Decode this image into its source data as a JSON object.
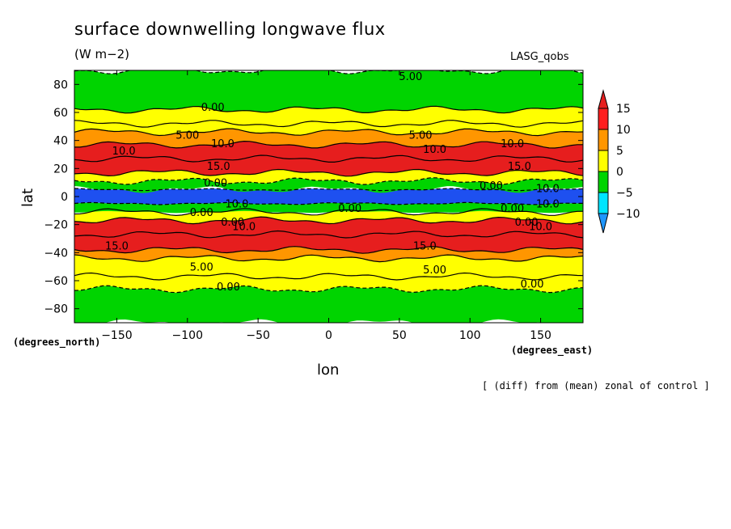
{
  "header": {
    "title": "surface downwelling longwave flux",
    "units": "(W m−2)",
    "model": "LASG_qobs",
    "note": "[ (diff) from (mean) zonal of control ]"
  },
  "axes": {
    "xlabel": "lon",
    "ylabel": "lat",
    "xunits": "(degrees_east)",
    "yunits": "(degrees_north)"
  },
  "chart_data": {
    "type": "heatmap",
    "title": "surface downwelling longwave flux",
    "units": "(W m−2)",
    "xlabel": "lon",
    "ylabel": "lat",
    "xlim": [
      -180,
      180
    ],
    "ylim": [
      -90,
      90
    ],
    "x_ticks": [
      -150,
      -100,
      -50,
      0,
      50,
      100,
      150
    ],
    "x_tick_labels": [
      "−150",
      "−100",
      "−50",
      "0",
      "50",
      "100",
      "150"
    ],
    "y_ticks": [
      -80,
      -60,
      -40,
      -20,
      0,
      20,
      40,
      60,
      80
    ],
    "y_tick_labels": [
      "−80",
      "−60",
      "−40",
      "−20",
      "0",
      "20",
      "40",
      "60",
      "80"
    ],
    "colorbar": {
      "levels": [
        -10,
        -5,
        0,
        5,
        10,
        15
      ],
      "level_labels": [
        "−10",
        "−5",
        "0",
        "5",
        "10",
        "15"
      ],
      "colors": [
        "#1e96ff",
        "#00e5ff",
        "#00d400",
        "#ffff00",
        "#ff9600",
        "#ff1e1e"
      ],
      "under_color": "#1e50f0",
      "over_color": "#e61e1e"
    },
    "zonal_bands": [
      {
        "lat_from": -90,
        "lat_to": -66,
        "value": -2.5
      },
      {
        "lat_from": -66,
        "lat_to": -57,
        "value": 2.5
      },
      {
        "lat_from": -57,
        "lat_to": -44,
        "value": 2.5
      },
      {
        "lat_from": -44,
        "lat_to": -38,
        "value": 7.5
      },
      {
        "lat_from": -38,
        "lat_to": -27,
        "value": 16
      },
      {
        "lat_from": -27,
        "lat_to": -17,
        "value": 18
      },
      {
        "lat_from": -17,
        "lat_to": -11,
        "value": 2.5
      },
      {
        "lat_from": -11,
        "lat_to": -5,
        "value": -2.5
      },
      {
        "lat_from": -5,
        "lat_to": 5,
        "value": -12
      },
      {
        "lat_from": 5,
        "lat_to": 11,
        "value": -2.5
      },
      {
        "lat_from": 11,
        "lat_to": 17,
        "value": 2.5
      },
      {
        "lat_from": 17,
        "lat_to": 27,
        "value": 18
      },
      {
        "lat_from": 27,
        "lat_to": 37,
        "value": 16
      },
      {
        "lat_from": 37,
        "lat_to": 46,
        "value": 7.5
      },
      {
        "lat_from": 46,
        "lat_to": 52,
        "value": 2.5
      },
      {
        "lat_from": 52,
        "lat_to": 62,
        "value": 2.5
      },
      {
        "lat_from": 62,
        "lat_to": 90,
        "value": -2.5
      }
    ],
    "contour_labels": [
      {
        "text": "5.00",
        "lon": 58,
        "lat": 86
      },
      {
        "text": "0.00",
        "lon": -82,
        "lat": 64
      },
      {
        "text": "5.00",
        "lon": -100,
        "lat": 44
      },
      {
        "text": "5.00",
        "lon": 65,
        "lat": 44
      },
      {
        "text": "10.0",
        "lon": -75,
        "lat": 38
      },
      {
        "text": "10.0",
        "lon": 130,
        "lat": 38
      },
      {
        "text": "10.0",
        "lon": -145,
        "lat": 33
      },
      {
        "text": "10.0",
        "lon": 75,
        "lat": 34
      },
      {
        "text": "15.0",
        "lon": -78,
        "lat": 22
      },
      {
        "text": "15.0",
        "lon": 135,
        "lat": 22
      },
      {
        "text": "0.00",
        "lon": -80,
        "lat": 10
      },
      {
        "text": "0.00",
        "lon": 115,
        "lat": 8
      },
      {
        "text": "10.0",
        "lon": 155,
        "lat": 6
      },
      {
        "text": "10.0",
        "lon": -65,
        "lat": -5
      },
      {
        "text": "10.0",
        "lon": 155,
        "lat": -5
      },
      {
        "text": "0.00",
        "lon": 15,
        "lat": -8
      },
      {
        "text": "0.00",
        "lon": 130,
        "lat": -8
      },
      {
        "text": "0.00",
        "lon": -90,
        "lat": -11
      },
      {
        "text": "0.00",
        "lon": -68,
        "lat": -18
      },
      {
        "text": "0.00",
        "lon": 140,
        "lat": -18
      },
      {
        "text": "10.0",
        "lon": -60,
        "lat": -21
      },
      {
        "text": "10.0",
        "lon": 150,
        "lat": -21
      },
      {
        "text": "15.0",
        "lon": -150,
        "lat": -35
      },
      {
        "text": "15.0",
        "lon": 68,
        "lat": -35
      },
      {
        "text": "5.00",
        "lon": -90,
        "lat": -50
      },
      {
        "text": "5.00",
        "lon": 75,
        "lat": -52
      },
      {
        "text": "0.00",
        "lon": -71,
        "lat": -64
      },
      {
        "text": "0.00",
        "lon": 144,
        "lat": -62
      }
    ]
  }
}
